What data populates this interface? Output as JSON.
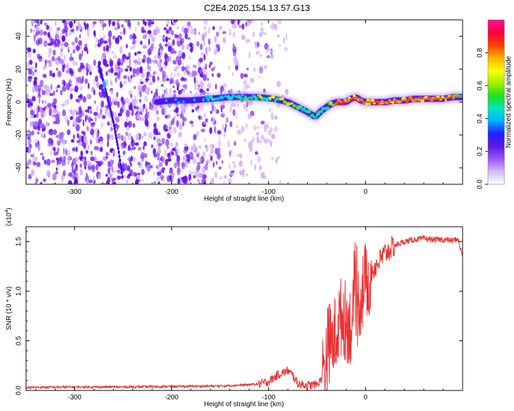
{
  "title": "C2E4.2025.154.13.57.G13",
  "chart_data": [
    {
      "type": "heatmap",
      "xlabel": "Height of straight line (km)",
      "ylabel": "Frequency (Hz)",
      "xlim": [
        -350,
        100
      ],
      "ylim": [
        -50,
        50
      ],
      "x_ticks": [
        -300,
        -200,
        -100,
        0
      ],
      "y_ticks": [
        -40,
        -20,
        0,
        20,
        40
      ],
      "grid": false,
      "colorbar": {
        "label": "Normalized spectral amplitude",
        "range": [
          0,
          1
        ],
        "ticks": [
          "0.0",
          "0.2",
          "0.4",
          "0.6",
          "0.8"
        ],
        "colors": [
          "#ffffff",
          "#d8b8f8",
          "#9b59f0",
          "#5a1ae8",
          "#2020ff",
          "#00b0ff",
          "#00e8c0",
          "#20e020",
          "#a0f000",
          "#ffff00",
          "#ffb000",
          "#ff4000",
          "#ff0040",
          "#ff1090"
        ]
      },
      "noise_region": {
        "x_range": [
          -350,
          -100
        ],
        "y_range": [
          -50,
          50
        ]
      },
      "dispersed_trace": {
        "x": [
          -275,
          -270,
          -265,
          -260,
          -255,
          -250
        ],
        "y": [
          22,
          12,
          0,
          -12,
          -28,
          -48
        ]
      },
      "ridge": {
        "x": [
          -215,
          -200,
          -180,
          -160,
          -140,
          -125,
          -110,
          -95,
          -80,
          -70,
          -60,
          -52,
          -45,
          -40,
          -35,
          -30,
          -25,
          -20,
          -15,
          -10,
          -5,
          0,
          10,
          20,
          30,
          40,
          50,
          60,
          70,
          80,
          90,
          100
        ],
        "y": [
          0,
          1,
          1,
          2,
          3,
          3,
          3,
          2,
          0,
          -3,
          -6,
          -9,
          -5,
          -3,
          -1,
          0,
          0,
          0,
          2,
          3,
          1,
          0,
          0,
          0,
          1,
          1,
          2,
          2,
          2,
          2,
          3,
          3
        ],
        "amplitude": [
          0.35,
          0.4,
          0.38,
          0.45,
          0.5,
          0.55,
          0.6,
          0.7,
          0.65,
          0.6,
          0.55,
          0.5,
          0.55,
          0.6,
          0.65,
          0.8,
          0.9,
          0.85,
          0.95,
          0.9,
          0.9,
          0.95,
          0.95,
          0.9,
          0.85,
          0.8,
          0.85,
          0.85,
          0.85,
          0.85,
          0.8,
          0.6
        ]
      }
    },
    {
      "type": "line",
      "xlabel": "Height of straight line (km)",
      "ylabel": "SNR (10 * v/v)",
      "y_multiplier": "(x10",
      "y_multiplier_exp": "4",
      "y_multiplier_close": ")",
      "xlim": [
        -350,
        100
      ],
      "ylim": [
        0,
        16500
      ],
      "x_ticks": [
        -300,
        -200,
        -100,
        0
      ],
      "y_ticks": [
        "0.0",
        "0.5",
        "1.0",
        "1.5"
      ],
      "grid": false,
      "series": [
        {
          "color": "#e83030",
          "x": [
            -350,
            -300,
            -250,
            -200,
            -150,
            -125,
            -110,
            -100,
            -90,
            -80,
            -75,
            -70,
            -60,
            -50,
            -45,
            -42,
            -38,
            -35,
            -30,
            -25,
            -20,
            -15,
            -10,
            -5,
            0,
            10,
            20,
            30,
            40,
            50,
            60,
            70,
            80,
            90,
            95,
            100
          ],
          "y": [
            300,
            350,
            350,
            400,
            450,
            550,
            650,
            900,
            1600,
            2000,
            1500,
            700,
            500,
            600,
            1200,
            3000,
            5000,
            4500,
            6000,
            7500,
            7000,
            6500,
            8000,
            9500,
            11000,
            12500,
            13800,
            14600,
            15000,
            15200,
            15300,
            15200,
            15200,
            15100,
            15300,
            13500
          ]
        }
      ]
    }
  ]
}
